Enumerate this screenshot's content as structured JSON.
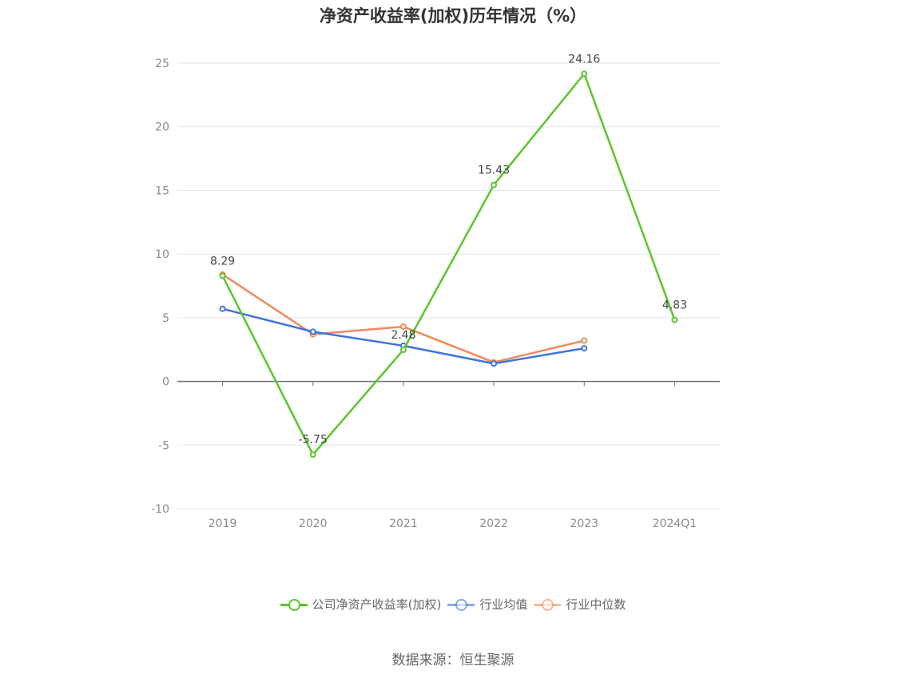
{
  "title": "净资产收益率(加权)历年情况（%）",
  "source": "数据来源：恒生聚源",
  "chart_data": {
    "type": "line",
    "categories": [
      "2019",
      "2020",
      "2021",
      "2022",
      "2023",
      "2024Q1"
    ],
    "ylim": [
      -10,
      25
    ],
    "yticks": [
      -10,
      -5,
      0,
      5,
      10,
      15,
      20,
      25
    ],
    "grid": true,
    "legend_position": "bottom",
    "series": [
      {
        "name": "公司净资产收益率(加权)",
        "color": "#5cc52b",
        "values": [
          8.29,
          -5.75,
          2.48,
          15.43,
          24.16,
          4.83
        ],
        "labels": [
          "8.29",
          "-5.75",
          "2.48",
          "15.43",
          "24.16",
          "4.83"
        ]
      },
      {
        "name": "行业均值",
        "color": "#3e74dc",
        "values": [
          5.7,
          3.9,
          2.8,
          1.4,
          2.6,
          null
        ]
      },
      {
        "name": "行业中位数",
        "color": "#f08a5d",
        "values": [
          8.4,
          3.7,
          4.3,
          1.5,
          3.2,
          null
        ]
      }
    ]
  }
}
